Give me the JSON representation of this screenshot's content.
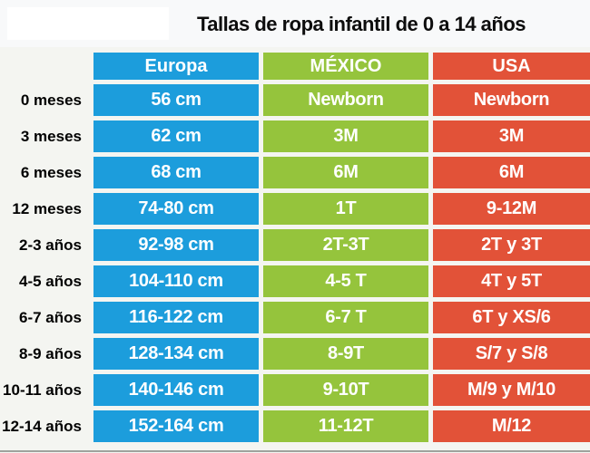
{
  "colors": {
    "europa_column": "#1c9ddc",
    "mexico_column": "#95c43c",
    "usa_column": "#e25238",
    "cell_text": "#ffffff",
    "label_text": "#000000",
    "background": "#f4f5f1",
    "logo_box": "#ffffff",
    "bottom_rule": "#9fa29d"
  },
  "chart_data": {
    "type": "table",
    "title": "Tallas de ropa infantil de 0 a 14 años",
    "columns": [
      "Europa",
      "MÉXICO",
      "USA"
    ],
    "row_header_label": "",
    "rows": [
      {
        "age": "0 meses",
        "europa": "56 cm",
        "mexico": "Newborn",
        "usa": "Newborn"
      },
      {
        "age": "3 meses",
        "europa": "62 cm",
        "mexico": "3M",
        "usa": "3M"
      },
      {
        "age": "6 meses",
        "europa": "68 cm",
        "mexico": "6M",
        "usa": "6M"
      },
      {
        "age": "12 meses",
        "europa": "74-80 cm",
        "mexico": "1T",
        "usa": "9-12M"
      },
      {
        "age": "2-3 años",
        "europa": "92-98 cm",
        "mexico": "2T-3T",
        "usa": "2T y 3T"
      },
      {
        "age": "4-5 años",
        "europa": "104-110 cm",
        "mexico": "4-5 T",
        "usa": "4T y 5T"
      },
      {
        "age": "6-7 años",
        "europa": "116-122 cm",
        "mexico": "6-7 T",
        "usa": "6T y XS/6"
      },
      {
        "age": "8-9 años",
        "europa": "128-134 cm",
        "mexico": "8-9T",
        "usa": "S/7 y S/8"
      },
      {
        "age": "10-11 años",
        "europa": "140-146 cm",
        "mexico": "9-10T",
        "usa": "M/9 y M/10"
      },
      {
        "age": "12-14 años",
        "europa": "152-164 cm",
        "mexico": "11-12T",
        "usa": "M/12"
      }
    ]
  }
}
